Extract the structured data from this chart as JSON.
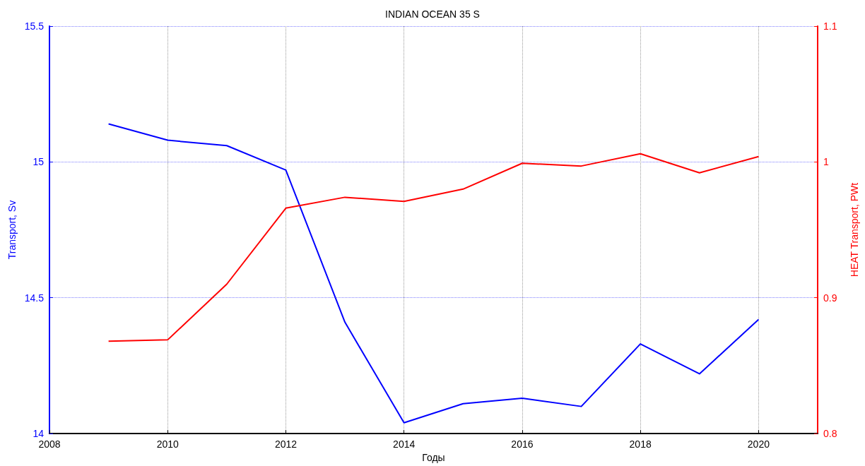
{
  "chart_data": {
    "type": "line",
    "title": "INDIAN OCEAN 35 S",
    "xlabel": "Годы",
    "ylabel": "Transport, Sv",
    "y2label": "HEAT Transport, PWt",
    "x": [
      2009,
      2010,
      2011,
      2012,
      2013,
      2014,
      2015,
      2016,
      2017,
      2018,
      2019,
      2020
    ],
    "series": [
      {
        "color": "#0000ff",
        "values": [
          15.14,
          15.08,
          15.06,
          14.97,
          14.41,
          14.04,
          14.11,
          14.13,
          14.1,
          14.33,
          14.22,
          14.42
        ]
      },
      {
        "color": "#ff0000",
        "axis": "y2",
        "values": [
          0.868,
          0.869,
          0.91,
          0.966,
          0.974,
          0.971,
          0.98,
          0.999,
          0.997,
          1.006,
          0.992,
          1.004
        ]
      }
    ],
    "xlim": [
      2008,
      2021
    ],
    "xticks": [
      2008,
      2010,
      2012,
      2014,
      2016,
      2018,
      2020
    ],
    "ylim": [
      14,
      15.5
    ],
    "yticks": [
      14,
      14.5,
      15,
      15.5
    ],
    "y2lim": [
      0.8,
      1.1
    ],
    "y2ticks": [
      0.8,
      0.9,
      1,
      1.1
    ],
    "grid": true,
    "marker": "none",
    "line_style": "solid"
  }
}
